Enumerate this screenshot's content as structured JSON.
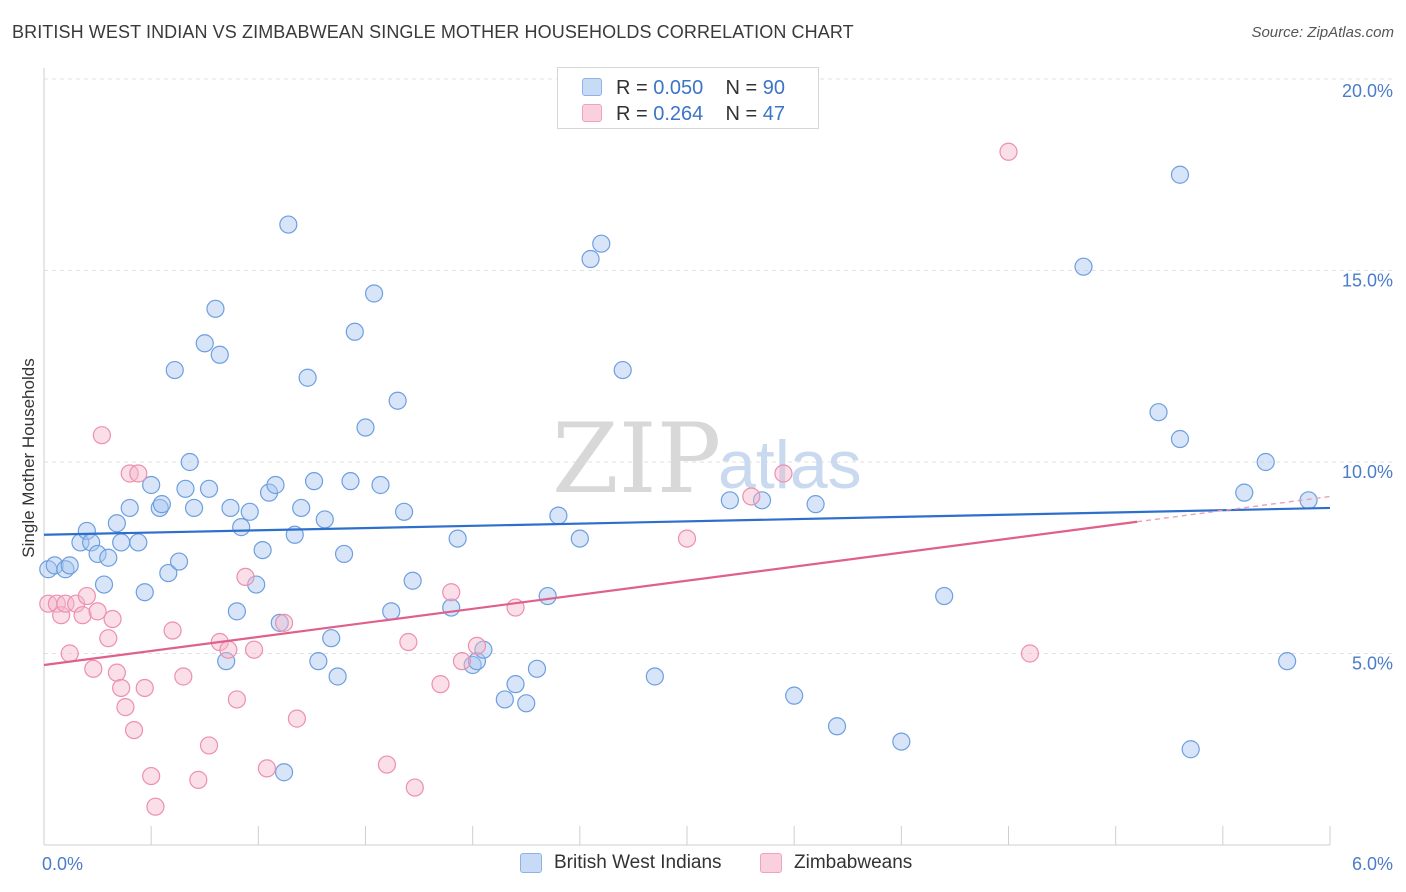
{
  "header": {
    "title": "BRITISH WEST INDIAN VS ZIMBABWEAN SINGLE MOTHER HOUSEHOLDS CORRELATION CHART",
    "source": "Source: ZipAtlas.com"
  },
  "watermark": {
    "zip": "ZIP",
    "atlas": "atlas"
  },
  "legend_top": {
    "rows": [
      {
        "r_label": "R =",
        "r_value": "0.050",
        "n_label": "N =",
        "n_value": "90",
        "color": "#a9c6ef"
      },
      {
        "r_label": "R =",
        "r_value": "0.264",
        "n_label": "N =",
        "n_value": "47",
        "color": "#f5b9cc"
      }
    ]
  },
  "legend_bottom": {
    "items": [
      {
        "label": "British West Indians",
        "color": "#a9c6ef"
      },
      {
        "label": "Zimbabweans",
        "color": "#f5b9cc"
      }
    ]
  },
  "chart_data": {
    "type": "scatter",
    "ylabel": "Single Mother Households",
    "xlim": [
      0,
      6
    ],
    "ylim": [
      0,
      20
    ],
    "x_tick_labels": [
      {
        "value": 0,
        "label": "0.0%"
      },
      {
        "value": 6,
        "label": "6.0%"
      }
    ],
    "y_tick_labels": [
      {
        "value": 5,
        "label": "5.0%"
      },
      {
        "value": 10,
        "label": "10.0%"
      },
      {
        "value": 15,
        "label": "15.0%"
      },
      {
        "value": 20,
        "label": "20.0%"
      }
    ],
    "grid": true,
    "colors": {
      "blue_fill": "#a9c6ef",
      "blue_line": "#2f6fcc",
      "pink_fill": "#f5b9cc",
      "pink_line": "#e0608c"
    },
    "series": [
      {
        "name": "British West Indians",
        "color": "#6d9fe0",
        "trend": {
          "x": [
            0,
            6
          ],
          "y": [
            8.1,
            8.8
          ]
        },
        "points": [
          [
            0.02,
            7.2
          ],
          [
            0.05,
            7.3
          ],
          [
            0.1,
            7.2
          ],
          [
            0.12,
            7.3
          ],
          [
            0.17,
            7.9
          ],
          [
            0.2,
            8.2
          ],
          [
            0.22,
            7.9
          ],
          [
            0.25,
            7.6
          ],
          [
            0.28,
            6.8
          ],
          [
            0.3,
            7.5
          ],
          [
            0.34,
            8.4
          ],
          [
            0.36,
            7.9
          ],
          [
            0.4,
            8.8
          ],
          [
            0.44,
            7.9
          ],
          [
            0.47,
            6.6
          ],
          [
            0.5,
            9.4
          ],
          [
            0.54,
            8.8
          ],
          [
            0.55,
            8.9
          ],
          [
            0.58,
            7.1
          ],
          [
            0.61,
            12.4
          ],
          [
            0.63,
            7.4
          ],
          [
            0.66,
            9.3
          ],
          [
            0.68,
            10.0
          ],
          [
            0.7,
            8.8
          ],
          [
            0.75,
            13.1
          ],
          [
            0.77,
            9.3
          ],
          [
            0.8,
            14.0
          ],
          [
            0.82,
            12.8
          ],
          [
            0.85,
            4.8
          ],
          [
            0.87,
            8.8
          ],
          [
            0.9,
            6.1
          ],
          [
            0.92,
            8.3
          ],
          [
            0.96,
            8.7
          ],
          [
            0.99,
            6.8
          ],
          [
            1.02,
            7.7
          ],
          [
            1.05,
            9.2
          ],
          [
            1.08,
            9.4
          ],
          [
            1.1,
            5.8
          ],
          [
            1.12,
            1.9
          ],
          [
            1.14,
            16.2
          ],
          [
            1.17,
            8.1
          ],
          [
            1.2,
            8.8
          ],
          [
            1.23,
            12.2
          ],
          [
            1.26,
            9.5
          ],
          [
            1.28,
            4.8
          ],
          [
            1.31,
            8.5
          ],
          [
            1.34,
            5.4
          ],
          [
            1.37,
            4.4
          ],
          [
            1.4,
            7.6
          ],
          [
            1.43,
            9.5
          ],
          [
            1.45,
            13.4
          ],
          [
            1.5,
            10.9
          ],
          [
            1.54,
            14.4
          ],
          [
            1.57,
            9.4
          ],
          [
            1.62,
            6.1
          ],
          [
            1.65,
            11.6
          ],
          [
            1.68,
            8.7
          ],
          [
            1.72,
            6.9
          ],
          [
            1.9,
            6.2
          ],
          [
            1.93,
            8.0
          ],
          [
            2.0,
            4.7
          ],
          [
            2.02,
            4.8
          ],
          [
            2.05,
            5.1
          ],
          [
            2.15,
            3.8
          ],
          [
            2.2,
            4.2
          ],
          [
            2.25,
            3.7
          ],
          [
            2.3,
            4.6
          ],
          [
            2.35,
            6.5
          ],
          [
            2.4,
            8.6
          ],
          [
            2.5,
            8.0
          ],
          [
            2.55,
            15.3
          ],
          [
            2.6,
            15.7
          ],
          [
            2.7,
            12.4
          ],
          [
            2.85,
            4.4
          ],
          [
            3.2,
            9.0
          ],
          [
            3.35,
            9.0
          ],
          [
            3.5,
            3.9
          ],
          [
            3.6,
            8.9
          ],
          [
            3.7,
            3.1
          ],
          [
            4.0,
            2.7
          ],
          [
            4.2,
            6.5
          ],
          [
            4.85,
            15.1
          ],
          [
            5.2,
            11.3
          ],
          [
            5.3,
            10.6
          ],
          [
            5.3,
            17.5
          ],
          [
            5.35,
            2.5
          ],
          [
            5.6,
            9.2
          ],
          [
            5.7,
            10.0
          ],
          [
            5.8,
            4.8
          ],
          [
            5.9,
            9.0
          ]
        ]
      },
      {
        "name": "Zimbabweans",
        "color": "#ee8fae",
        "trend": {
          "x": [
            0,
            6
          ],
          "y": [
            4.7,
            9.1
          ]
        },
        "trend_solid_until": 5.1,
        "points": [
          [
            0.02,
            6.3
          ],
          [
            0.06,
            6.3
          ],
          [
            0.08,
            6.0
          ],
          [
            0.1,
            6.3
          ],
          [
            0.12,
            5.0
          ],
          [
            0.15,
            6.3
          ],
          [
            0.18,
            6.0
          ],
          [
            0.2,
            6.5
          ],
          [
            0.23,
            4.6
          ],
          [
            0.25,
            6.1
          ],
          [
            0.27,
            10.7
          ],
          [
            0.3,
            5.4
          ],
          [
            0.32,
            5.9
          ],
          [
            0.34,
            4.5
          ],
          [
            0.36,
            4.1
          ],
          [
            0.38,
            3.6
          ],
          [
            0.4,
            9.7
          ],
          [
            0.42,
            3.0
          ],
          [
            0.44,
            9.7
          ],
          [
            0.47,
            4.1
          ],
          [
            0.5,
            1.8
          ],
          [
            0.52,
            1.0
          ],
          [
            0.6,
            5.6
          ],
          [
            0.65,
            4.4
          ],
          [
            0.72,
            1.7
          ],
          [
            0.77,
            2.6
          ],
          [
            0.82,
            5.3
          ],
          [
            0.86,
            5.1
          ],
          [
            0.9,
            3.8
          ],
          [
            0.94,
            7.0
          ],
          [
            0.98,
            5.1
          ],
          [
            1.04,
            2.0
          ],
          [
            1.12,
            5.8
          ],
          [
            1.18,
            3.3
          ],
          [
            1.6,
            2.1
          ],
          [
            1.7,
            5.3
          ],
          [
            1.73,
            1.5
          ],
          [
            1.85,
            4.2
          ],
          [
            1.9,
            6.6
          ],
          [
            1.95,
            4.8
          ],
          [
            2.02,
            5.2
          ],
          [
            2.2,
            6.2
          ],
          [
            3.0,
            8.0
          ],
          [
            3.3,
            9.1
          ],
          [
            3.45,
            9.7
          ],
          [
            4.5,
            18.1
          ],
          [
            4.6,
            5.0
          ]
        ]
      }
    ]
  }
}
